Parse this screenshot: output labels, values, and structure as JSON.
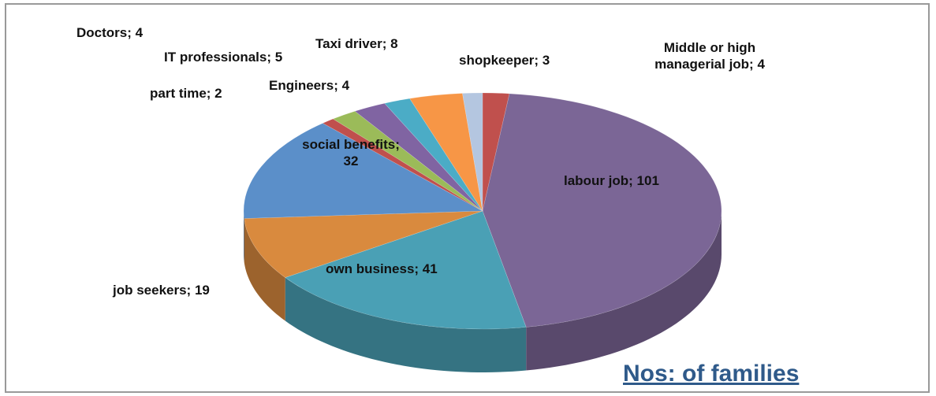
{
  "chart_data": {
    "type": "pie3d",
    "title": "Nos: of families",
    "categories": [
      "Middle or high managerial job",
      "labour job",
      "own business",
      "job seekers",
      "social benefits",
      "part time",
      "Engineers",
      "IT professionals",
      "Doctors",
      "Taxi driver",
      "shopkeeper"
    ],
    "values": [
      4,
      101,
      41,
      19,
      32,
      2,
      4,
      5,
      4,
      8,
      3
    ],
    "value_labels": [
      "Middle or high managerial job; 4",
      "labour job; 101",
      "own business; 41",
      "job seekers; 19",
      "social benefits; 32",
      "part time; 2",
      "Engineers; 4",
      "IT professionals; 5",
      "Doctors; 4",
      "Taxi driver; 8",
      "shopkeeper; 3"
    ],
    "colors": [
      "#c0504d",
      "#7b6696",
      "#4aa0b5",
      "#d98a3e",
      "#5b8fc9",
      "#c0504d",
      "#9bbb59",
      "#8064a2",
      "#4bacc6",
      "#f79646",
      "#b4c6e0"
    ]
  }
}
